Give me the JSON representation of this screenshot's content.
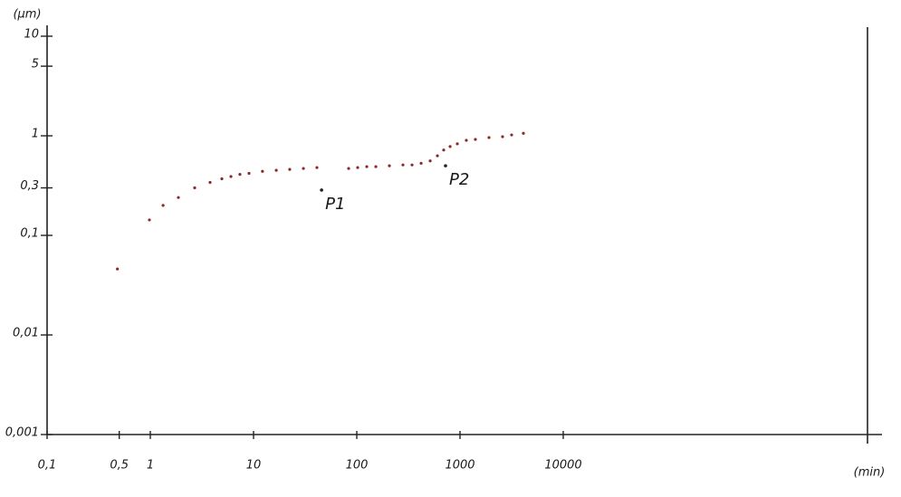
{
  "chart_data": {
    "type": "scatter",
    "x_label": "(min)",
    "y_label": "(μm)",
    "log_x": true,
    "log_y": true,
    "color": "#8a2a2a",
    "xlim": [
      0.1,
      10000000
    ],
    "ylim": [
      0.001,
      10
    ],
    "xticks": [
      {
        "value": 0.1,
        "label": "0,1"
      },
      {
        "value": 0.5,
        "label": "0,5"
      },
      1,
      10,
      100,
      1000,
      10000
    ],
    "yticks": [
      {
        "value": 0.001,
        "label": "0,001"
      },
      {
        "value": 0.01,
        "label": "0,01"
      },
      {
        "value": 0.1,
        "label": "0,1"
      },
      {
        "value": 0.3,
        "label": "0,3"
      },
      1,
      5,
      10
    ],
    "x": [
      0.48,
      0.98,
      1.33,
      1.87,
      2.69,
      3.79,
      4.93,
      6.04,
      7.38,
      9.04,
      12.2,
      16.6,
      22.4,
      30.4,
      41.1,
      83.4,
      102,
      125,
      153,
      207,
      280,
      343,
      420,
      514,
      604,
      695,
      802,
      942,
      1151,
      1409,
      1910,
      2582,
      3162,
      4111
    ],
    "values": [
      0.046,
      0.143,
      0.2,
      0.24,
      0.3,
      0.34,
      0.37,
      0.39,
      0.41,
      0.42,
      0.44,
      0.45,
      0.46,
      0.47,
      0.48,
      0.47,
      0.48,
      0.49,
      0.49,
      0.5,
      0.51,
      0.51,
      0.53,
      0.56,
      0.63,
      0.72,
      0.78,
      0.83,
      0.9,
      0.92,
      0.96,
      0.98,
      1.02,
      1.06
    ],
    "annotations": [
      {
        "text": "P1",
        "x": 45.6,
        "y": 0.285
      },
      {
        "text": "P2",
        "x": 724,
        "y": 0.5
      }
    ]
  }
}
